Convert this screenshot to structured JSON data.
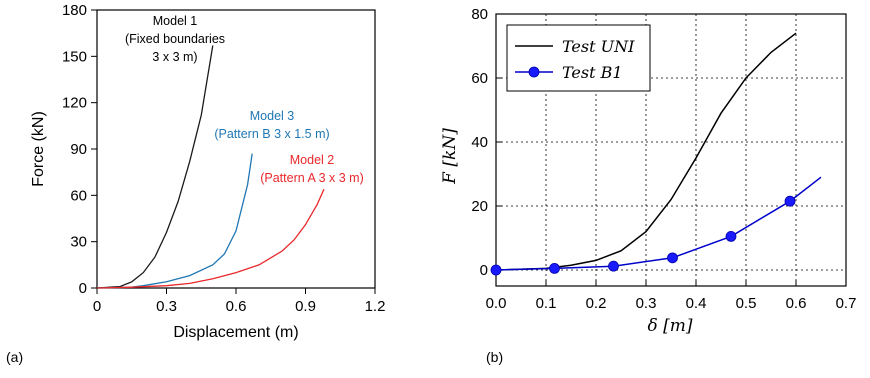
{
  "chart_data": [
    {
      "panel_label": "(a)",
      "type": "line",
      "xlabel": "Displacement (m)",
      "ylabel": "Force (kN)",
      "xlim": [
        0,
        1.2
      ],
      "ylim": [
        0,
        180
      ],
      "xticks": [
        "0",
        "0.3",
        "0.6",
        "0.9",
        "1.2"
      ],
      "yticks": [
        "0",
        "30",
        "60",
        "90",
        "120",
        "150",
        "180"
      ],
      "grid": false,
      "legend": "none",
      "series": [
        {
          "color": "#1a1a1a",
          "annotation": [
            "Model 1",
            "(Fixed boundaries",
            "3 x 3 m)"
          ],
          "x": [
            0,
            0.1,
            0.15,
            0.2,
            0.25,
            0.3,
            0.35,
            0.4,
            0.45,
            0.5
          ],
          "y": [
            0,
            1,
            4,
            10,
            20,
            36,
            56,
            82,
            112,
            157
          ]
        },
        {
          "color": "#1f77b4",
          "annotation": [
            "Model 3",
            "(Pattern B 3 x 1.5 m)"
          ],
          "x": [
            0,
            0.15,
            0.2,
            0.3,
            0.4,
            0.5,
            0.55,
            0.6,
            0.65,
            0.67
          ],
          "y": [
            0,
            0.5,
            1.5,
            4,
            8,
            15,
            22,
            37,
            67,
            87
          ]
        },
        {
          "color": "#e8282b",
          "annotation": [
            "Model 2",
            "(Pattern A 3 x 3 m)"
          ],
          "x": [
            0,
            0.15,
            0.3,
            0.4,
            0.5,
            0.6,
            0.7,
            0.8,
            0.85,
            0.9,
            0.95,
            0.98
          ],
          "y": [
            0,
            0.5,
            1.5,
            3,
            6,
            10,
            15,
            24,
            31,
            41,
            54,
            64
          ]
        }
      ]
    },
    {
      "panel_label": "(b)",
      "type": "line",
      "xlabel": "δ [m]",
      "ylabel": "F [kN]",
      "xlim": [
        0,
        0.7
      ],
      "ylim": [
        -5,
        80
      ],
      "xticks": [
        "0.0",
        "0.1",
        "0.2",
        "0.3",
        "0.4",
        "0.5",
        "0.6",
        "0.7"
      ],
      "yticks": [
        "0",
        "20",
        "40",
        "60",
        "80"
      ],
      "grid": true,
      "legend": "top-left",
      "series": [
        {
          "name": "Test UNI",
          "color": "#000000",
          "x": [
            0,
            0.1,
            0.15,
            0.2,
            0.25,
            0.3,
            0.35,
            0.4,
            0.45,
            0.5,
            0.55,
            0.6
          ],
          "y": [
            0,
            0.5,
            1.5,
            3,
            6,
            12,
            22,
            35,
            49,
            60,
            68,
            74
          ]
        },
        {
          "name": "Test B1",
          "color": "#0000cc",
          "marker_color": "#1a1aff",
          "x": [
            0,
            0.117,
            0.235,
            0.353,
            0.47,
            0.588,
            0.65
          ],
          "y": [
            0,
            0.5,
            1.2,
            3.8,
            10.5,
            21.5,
            29
          ],
          "markers_at": [
            0,
            1,
            2,
            3,
            4,
            5
          ]
        }
      ]
    }
  ]
}
